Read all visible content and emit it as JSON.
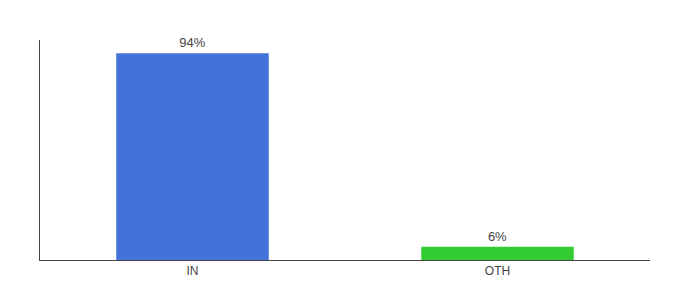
{
  "chart_data": {
    "type": "bar",
    "categories": [
      "IN",
      "OTH"
    ],
    "values": [
      94,
      6
    ],
    "value_labels": [
      "94%",
      "6%"
    ],
    "colors": [
      "#4472db",
      "#33cc33"
    ],
    "ylim": [
      0,
      100
    ],
    "grid": false,
    "data_labels": true,
    "tick_labels": "x"
  }
}
